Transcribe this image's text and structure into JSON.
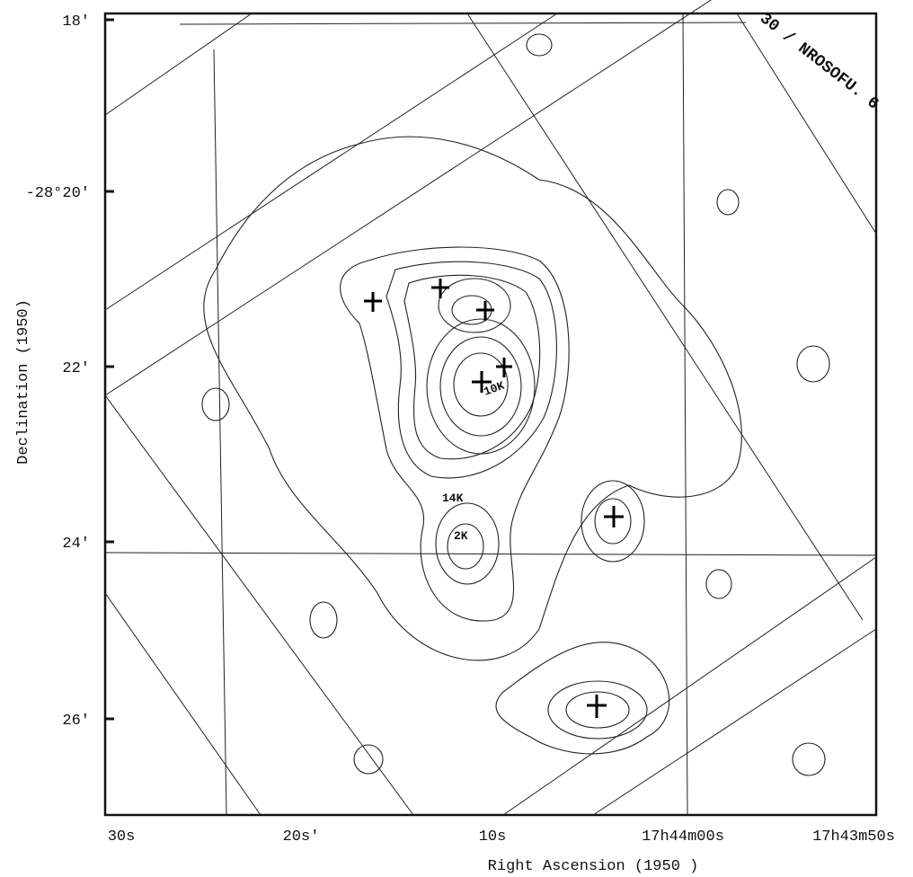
{
  "figure": {
    "y_axis_label": "Declination (1950)",
    "x_axis_label": "Right Ascension (1950 )",
    "y_ticks": [
      "18'",
      "-28°20'",
      "22'",
      "24'",
      "26'"
    ],
    "x_ticks": [
      "30s",
      "20s'",
      "10s",
      "17h44m00s",
      "17h43m50s"
    ],
    "annotations": [
      "30 / NROSOFU. 6",
      "10K",
      "14K",
      "2K"
    ]
  }
}
